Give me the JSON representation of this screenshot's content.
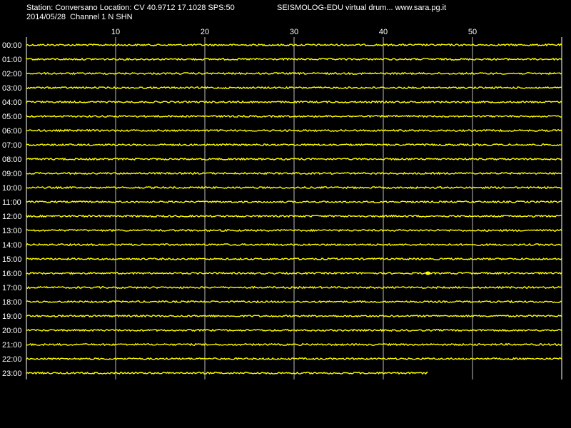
{
  "header": {
    "station_line": "Station: Conversano Location: CV 40.9712 17.1028 SPS:50",
    "date_line": "2014/05/28  Channel 1 N SHN",
    "brand_line": "SEISMOLOG-EDU virtual drum... www.sara.pg.it"
  },
  "colors": {
    "background": "#000000",
    "trace": "#ffff00",
    "grid": "#ffffff",
    "text": "#ffffff"
  },
  "chart_data": {
    "type": "line",
    "title": "",
    "xlabel": "",
    "ylabel": "",
    "x_ticks": [
      10,
      20,
      30,
      40,
      50
    ],
    "xlim": [
      0,
      60
    ],
    "hours": [
      "00:00",
      "01:00",
      "02:00",
      "03:00",
      "04:00",
      "05:00",
      "06:00",
      "07:00",
      "08:00",
      "09:00",
      "10:00",
      "11:00",
      "12:00",
      "13:00",
      "14:00",
      "15:00",
      "16:00",
      "17:00",
      "18:00",
      "19:00",
      "20:00",
      "21:00",
      "22:00",
      "23:00"
    ],
    "trace_end_minute": [
      60,
      60,
      60,
      60,
      60,
      60,
      60,
      60,
      60,
      60,
      60,
      60,
      60,
      60,
      60,
      60,
      60,
      60,
      60,
      60,
      60,
      60,
      60,
      45
    ],
    "events": [
      {
        "hour": "16:00",
        "minute": 45
      }
    ],
    "grid": true
  }
}
